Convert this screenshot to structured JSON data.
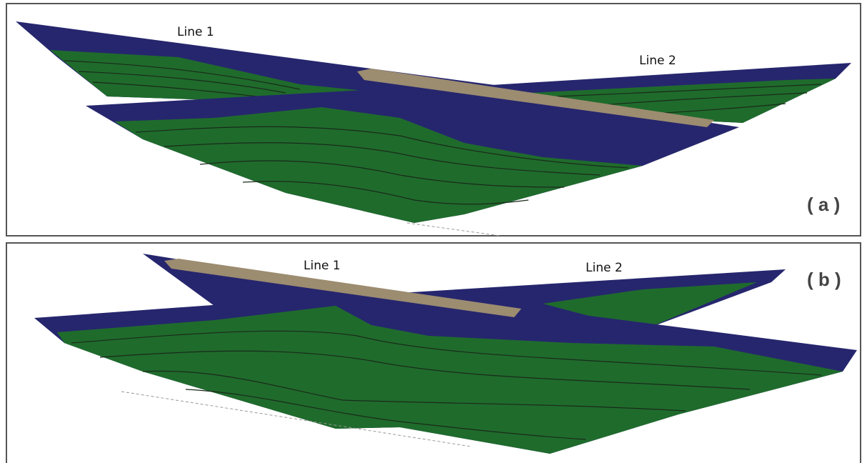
{
  "panels": [
    {
      "label": "( a )",
      "line_labels": [
        "Line 1",
        "Line 2"
      ]
    },
    {
      "label": "( b )",
      "line_labels": [
        "Line 1",
        "Line 2"
      ]
    }
  ]
}
